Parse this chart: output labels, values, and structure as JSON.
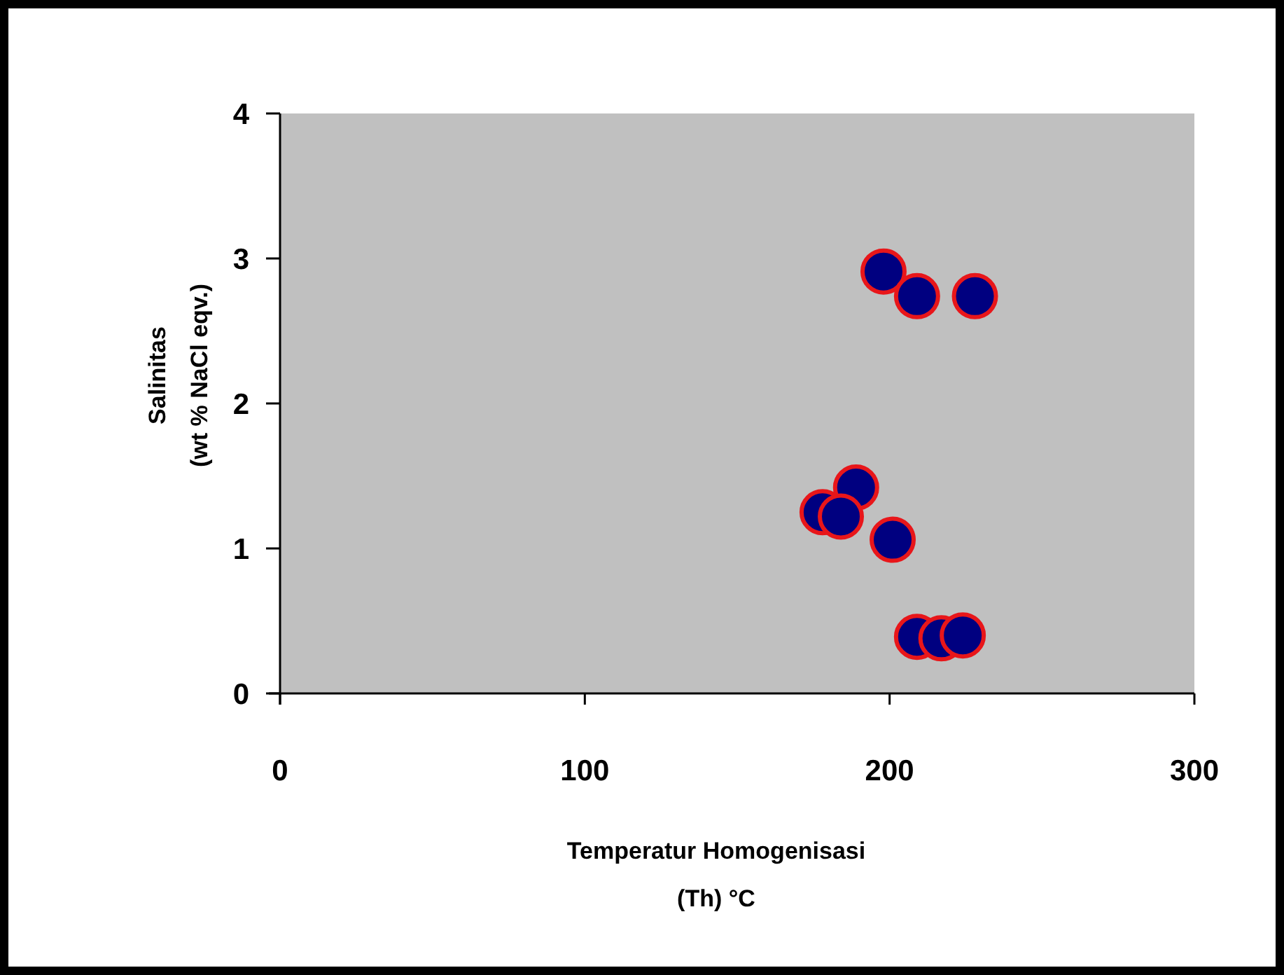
{
  "chart_data": {
    "type": "scatter",
    "xlabel": "Temperatur Homogenisasi\n(Th) °C",
    "ylabel": "Salinitas\n(wt % NaCl eqv.)",
    "xlim": [
      0,
      300
    ],
    "xticks": [
      0,
      100,
      200,
      300
    ],
    "ylim": [
      0,
      4
    ],
    "yticks": [
      0,
      1,
      2,
      3,
      4
    ],
    "grid": false,
    "marker": "circle",
    "series": [
      {
        "color": "#000080",
        "x": [
          198,
          209,
          228,
          189,
          178,
          184,
          201,
          209,
          217,
          224
        ],
        "values": [
          2.91,
          2.74,
          2.74,
          1.42,
          1.25,
          1.22,
          1.06,
          0.39,
          0.38,
          0.4
        ]
      }
    ]
  }
}
